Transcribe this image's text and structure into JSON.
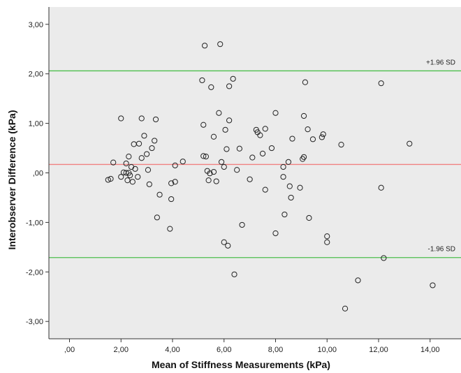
{
  "chart_data": {
    "type": "scatter",
    "xlabel": "Mean of Stiffness Measurements (kPa)",
    "ylabel": "Interobserver Difference (kPa)",
    "xlim": [
      -0.8,
      15.2
    ],
    "ylim": [
      -3.35,
      3.35
    ],
    "x_ticks": [
      0,
      2,
      4,
      6,
      8,
      10,
      12,
      14
    ],
    "x_tick_labels": [
      ",00",
      "2,00",
      "4,00",
      "6,00",
      "8,00",
      "10,00",
      "12,00",
      "14,00"
    ],
    "y_ticks": [
      3,
      2,
      1,
      0,
      -1,
      -2,
      -3
    ],
    "y_tick_labels": [
      "3,00",
      "2,00",
      "1,00",
      ",00",
      "-1,00",
      "-2,00",
      "-3,00"
    ],
    "grid": false,
    "background": "#ebebeb",
    "marker": "open-circle",
    "reference_lines": [
      {
        "label": "+1.96 SD",
        "y": 2.06,
        "color": "#4dbf4d"
      },
      {
        "label": "",
        "y": 0.17,
        "color": "#f08080"
      },
      {
        "label": "-1.96 SD",
        "y": -1.71,
        "color": "#4dbf4d"
      }
    ],
    "points": [
      {
        "x": 1.5,
        "y": -0.14
      },
      {
        "x": 1.6,
        "y": -0.12
      },
      {
        "x": 1.7,
        "y": 0.21
      },
      {
        "x": 2.0,
        "y": 1.1
      },
      {
        "x": 2.0,
        "y": -0.08
      },
      {
        "x": 2.1,
        "y": 0.01
      },
      {
        "x": 2.2,
        "y": 0.0
      },
      {
        "x": 2.2,
        "y": 0.19
      },
      {
        "x": 2.25,
        "y": -0.15
      },
      {
        "x": 2.3,
        "y": 0.33
      },
      {
        "x": 2.3,
        "y": 0.0
      },
      {
        "x": 2.35,
        "y": -0.05
      },
      {
        "x": 2.4,
        "y": 0.12
      },
      {
        "x": 2.45,
        "y": -0.18
      },
      {
        "x": 2.5,
        "y": 0.58
      },
      {
        "x": 2.55,
        "y": 0.08
      },
      {
        "x": 2.65,
        "y": -0.08
      },
      {
        "x": 2.7,
        "y": 0.59
      },
      {
        "x": 2.8,
        "y": 1.1
      },
      {
        "x": 2.8,
        "y": 0.3
      },
      {
        "x": 2.9,
        "y": 0.75
      },
      {
        "x": 3.0,
        "y": 0.38
      },
      {
        "x": 3.05,
        "y": 0.06
      },
      {
        "x": 3.1,
        "y": -0.23
      },
      {
        "x": 3.2,
        "y": 0.5
      },
      {
        "x": 3.3,
        "y": 0.65
      },
      {
        "x": 3.35,
        "y": 1.08
      },
      {
        "x": 3.4,
        "y": -0.9
      },
      {
        "x": 3.5,
        "y": -0.44
      },
      {
        "x": 3.9,
        "y": -1.13
      },
      {
        "x": 3.95,
        "y": -0.21
      },
      {
        "x": 3.95,
        "y": -0.53
      },
      {
        "x": 4.1,
        "y": -0.18
      },
      {
        "x": 4.1,
        "y": 0.15
      },
      {
        "x": 4.4,
        "y": 0.23
      },
      {
        "x": 5.15,
        "y": 1.87
      },
      {
        "x": 5.2,
        "y": 0.97
      },
      {
        "x": 5.2,
        "y": 0.34
      },
      {
        "x": 5.25,
        "y": 2.57
      },
      {
        "x": 5.3,
        "y": 0.33
      },
      {
        "x": 5.35,
        "y": 0.04
      },
      {
        "x": 5.4,
        "y": -0.15
      },
      {
        "x": 5.45,
        "y": -0.01
      },
      {
        "x": 5.5,
        "y": 1.73
      },
      {
        "x": 5.6,
        "y": 0.73
      },
      {
        "x": 5.6,
        "y": 0.02
      },
      {
        "x": 5.7,
        "y": -0.17
      },
      {
        "x": 5.8,
        "y": 1.21
      },
      {
        "x": 5.85,
        "y": 2.6
      },
      {
        "x": 5.9,
        "y": 0.22
      },
      {
        "x": 6.0,
        "y": 0.12
      },
      {
        "x": 6.0,
        "y": -1.4
      },
      {
        "x": 6.05,
        "y": 0.87
      },
      {
        "x": 6.1,
        "y": 0.48
      },
      {
        "x": 6.15,
        "y": -1.47
      },
      {
        "x": 6.2,
        "y": 1.75
      },
      {
        "x": 6.2,
        "y": 1.06
      },
      {
        "x": 6.35,
        "y": 1.9
      },
      {
        "x": 6.4,
        "y": -2.05
      },
      {
        "x": 6.5,
        "y": 0.06
      },
      {
        "x": 6.6,
        "y": 0.49
      },
      {
        "x": 6.7,
        "y": -1.05
      },
      {
        "x": 7.0,
        "y": -0.13
      },
      {
        "x": 7.1,
        "y": 0.31
      },
      {
        "x": 7.25,
        "y": 0.87
      },
      {
        "x": 7.3,
        "y": 0.82
      },
      {
        "x": 7.4,
        "y": 0.76
      },
      {
        "x": 7.5,
        "y": 0.39
      },
      {
        "x": 7.6,
        "y": 0.89
      },
      {
        "x": 7.6,
        "y": -0.34
      },
      {
        "x": 7.85,
        "y": 0.5
      },
      {
        "x": 8.0,
        "y": 1.21
      },
      {
        "x": 8.0,
        "y": -1.22
      },
      {
        "x": 8.3,
        "y": 0.12
      },
      {
        "x": 8.3,
        "y": -0.08
      },
      {
        "x": 8.35,
        "y": -0.84
      },
      {
        "x": 8.5,
        "y": 0.22
      },
      {
        "x": 8.55,
        "y": -0.27
      },
      {
        "x": 8.6,
        "y": -0.5
      },
      {
        "x": 8.65,
        "y": 0.69
      },
      {
        "x": 8.95,
        "y": -0.3
      },
      {
        "x": 9.05,
        "y": 0.28
      },
      {
        "x": 9.1,
        "y": 0.32
      },
      {
        "x": 9.1,
        "y": 1.15
      },
      {
        "x": 9.15,
        "y": 1.83
      },
      {
        "x": 9.25,
        "y": 0.88
      },
      {
        "x": 9.3,
        "y": -0.91
      },
      {
        "x": 9.45,
        "y": 0.68
      },
      {
        "x": 9.8,
        "y": 0.72
      },
      {
        "x": 9.85,
        "y": 0.78
      },
      {
        "x": 10.0,
        "y": -1.28
      },
      {
        "x": 10.0,
        "y": -1.4
      },
      {
        "x": 10.55,
        "y": 0.57
      },
      {
        "x": 10.7,
        "y": -2.74
      },
      {
        "x": 11.2,
        "y": -2.17
      },
      {
        "x": 12.1,
        "y": 1.81
      },
      {
        "x": 12.1,
        "y": -0.3
      },
      {
        "x": 12.2,
        "y": -1.72
      },
      {
        "x": 13.2,
        "y": 0.59
      },
      {
        "x": 14.1,
        "y": -2.27
      }
    ]
  }
}
